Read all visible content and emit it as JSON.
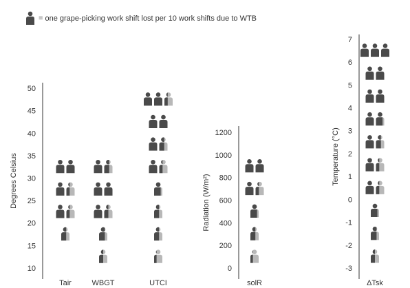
{
  "legend_text": "= one grape-picking work shift lost per 10 work shifts due to WTB",
  "chart_data": [
    {
      "type": "pictogram",
      "y_label": "Degrees Celsius",
      "ylim": [
        7.7,
        51.4
      ],
      "yticks": [
        10,
        15,
        20,
        25,
        30,
        35,
        40,
        45,
        50
      ],
      "groups": [
        {
          "category": "Tair",
          "levels": [
            17.5,
            22.5,
            27.5,
            32.5
          ],
          "values": [
            0.6,
            1.4,
            1.4,
            2
          ]
        },
        {
          "category": "WBGT",
          "levels": [
            12.5,
            17.5,
            22.5,
            27.5,
            32.5
          ],
          "values": [
            0.5,
            0.7,
            1.5,
            2,
            1.6
          ]
        },
        {
          "category": "UTCI",
          "levels": [
            12.5,
            17.5,
            22.5,
            27.5,
            32.5,
            37.5,
            42.5,
            47.5
          ],
          "values": [
            0.3,
            0.6,
            0.6,
            0.8,
            1.4,
            1.6,
            2,
            2.4
          ]
        }
      ]
    },
    {
      "type": "pictogram",
      "y_label": "Radiation (W/m²)",
      "ylim": [
        -91,
        1261
      ],
      "yticks": [
        0,
        200,
        400,
        600,
        800,
        1000,
        1200
      ],
      "groups": [
        {
          "category": "solR",
          "levels": [
            100,
            300,
            500,
            700,
            900
          ],
          "values": [
            0.3,
            0.6,
            0.8,
            1.4,
            2
          ]
        }
      ]
    },
    {
      "type": "pictogram",
      "y_label": "Temperature (°C)",
      "ylim": [
        -3.45,
        7.24
      ],
      "yticks": [
        -3,
        -2,
        -1,
        0,
        1,
        2,
        3,
        4,
        5,
        6,
        7
      ],
      "groups": [
        {
          "category": "ΔTsk",
          "levels": [
            -2.5,
            -1.5,
            -0.5,
            0.5,
            1.5,
            2.5,
            3.5,
            4.5,
            5.5,
            6.5
          ],
          "values": [
            0.5,
            0.7,
            0.8,
            1.4,
            1.4,
            1.6,
            1.8,
            2,
            2,
            3
          ]
        }
      ]
    }
  ]
}
